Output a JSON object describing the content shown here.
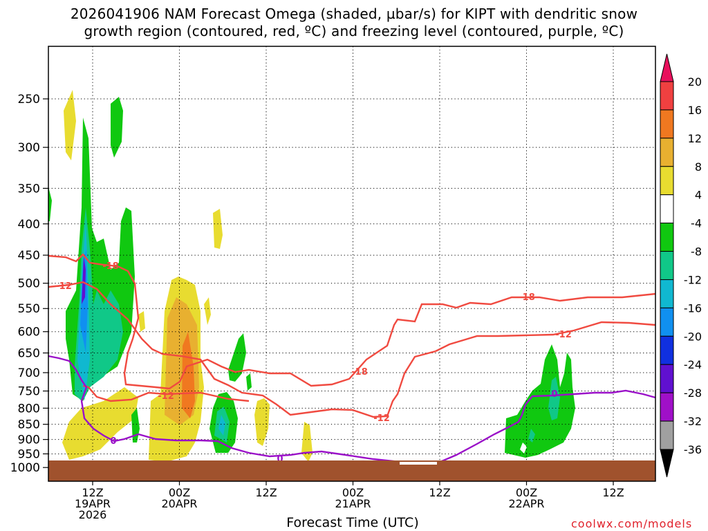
{
  "chart_data": {
    "type": "heatmap",
    "title_line1": "2026041906 NAM Forecast Omega (shaded, µbar/s) for KIPT with dendritic snow",
    "title_line2": "growth region (contoured, red, ºC) and freezing level (contoured, purple, ºC)",
    "xlabel": "Forecast Time (UTC)",
    "credit": "coolwx.com/models",
    "y_axis": {
      "ticks": [
        "250",
        "300",
        "350",
        "400",
        "450",
        "500",
        "550",
        "600",
        "650",
        "700",
        "750",
        "800",
        "850",
        "900",
        "950",
        "1000"
      ],
      "scale": "log-pressure",
      "grid": "dotted"
    },
    "x_axis": {
      "ticks": [
        {
          "line1": "12Z",
          "line2": "19APR",
          "line3": "2026"
        },
        {
          "line1": "00Z",
          "line2": "20APR",
          "line3": ""
        },
        {
          "line1": "12Z",
          "line2": "",
          "line3": ""
        },
        {
          "line1": "00Z",
          "line2": "21APR",
          "line3": ""
        },
        {
          "line1": "12Z",
          "line2": "",
          "line3": ""
        },
        {
          "line1": "00Z",
          "line2": "22APR",
          "line3": ""
        },
        {
          "line1": "12Z",
          "line2": "",
          "line3": ""
        }
      ],
      "grid": "dotted"
    },
    "colorbar": {
      "labels": [
        "20",
        "16",
        "12",
        "8",
        "4",
        "-4",
        "-8",
        "-12",
        "-16",
        "-20",
        "-24",
        "-28",
        "-32",
        "-36"
      ],
      "colors": [
        "#e8105c",
        "#f04040",
        "#f07820",
        "#e8b030",
        "#e8dc30",
        "#ffffff",
        "#10c810",
        "#10c888",
        "#10b8d0",
        "#1090f0",
        "#1030e0",
        "#6010d0",
        "#a010c8",
        "#a0a0a0",
        "#000000"
      ]
    },
    "contour_labels": {
      "red": [
        "-18",
        "-12",
        "-12",
        "-18",
        "-12",
        "-18",
        "-12"
      ],
      "purple": [
        "0",
        "0",
        "0"
      ]
    },
    "colors": {
      "dgz": "#f04a40",
      "freezing": "#9a10c8",
      "ground": "#a0522d"
    }
  }
}
